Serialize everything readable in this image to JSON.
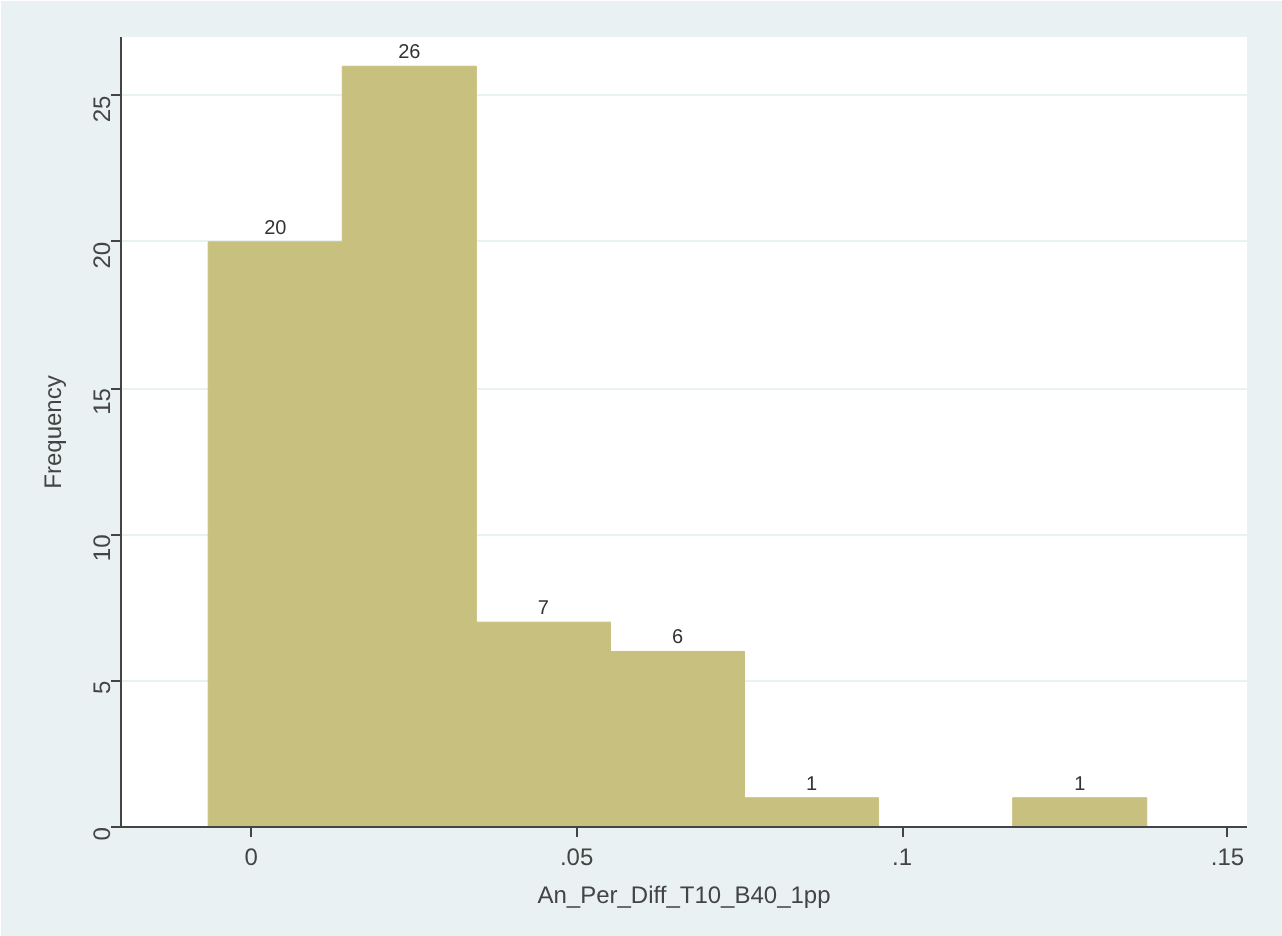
{
  "chart_data": {
    "type": "histogram",
    "xlabel": "An_Per_Diff_T10_B40_1pp",
    "ylabel": "Frequency",
    "bins": [
      -0.0066,
      0.014,
      0.0346,
      0.0552,
      0.0758,
      0.0964,
      0.117,
      0.1376
    ],
    "values": [
      20,
      26,
      7,
      6,
      1,
      0,
      1
    ],
    "color": "#c8c07e",
    "value_labels": [
      "20",
      "26",
      "7",
      "6",
      "1",
      null,
      "1"
    ],
    "xlim": [
      -0.02,
      0.153
    ],
    "ylim": [
      0,
      27
    ],
    "xticks": [
      {
        "value": 0,
        "label": "0"
      },
      {
        "value": 0.05,
        "label": ".05"
      },
      {
        "value": 0.1,
        "label": ".1"
      },
      {
        "value": 0.15,
        "label": ".15"
      }
    ],
    "yticks": [
      0,
      5,
      10,
      15,
      20,
      25
    ],
    "grid": "y"
  }
}
